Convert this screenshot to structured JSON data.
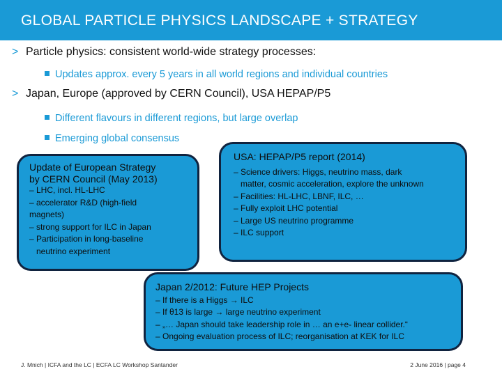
{
  "header": {
    "title": "GLOBAL PARTICLE PHYSICS LANDSCAPE + STRATEGY"
  },
  "bullets": [
    {
      "text": "Particle physics: consistent world-wide strategy processes:",
      "sub": [
        "Updates approx. every 5 years in all world regions and individual countries"
      ]
    },
    {
      "text": "Japan, Europe (approved by CERN Council), USA HEPAP/P5",
      "sub": [
        "Different flavours in different regions, but large overlap",
        "Emerging global consensus"
      ]
    }
  ],
  "boxes": {
    "europe": {
      "title_line1": "Update of European Strategy",
      "title_line2": "by CERN Council (May 2013)",
      "items": [
        "– LHC, incl. HL-LHC",
        "– accelerator R&D (high-field",
        "magnets)",
        "– strong support for ILC in Japan",
        "– Participation in long-baseline",
        "neutrino experiment"
      ]
    },
    "usa": {
      "title": "USA: HEPAP/P5 report (2014)",
      "items": [
        "– Science drivers: Higgs, neutrino mass, dark",
        "matter, cosmic acceleration, explore the unknown",
        "– Facilities: HL-LHC, LBNF, ILC, …",
        "– Fully exploit LHC potential",
        "– Large US neutrino programme",
        "– ILC support"
      ]
    },
    "japan": {
      "title": "Japan 2/2012: Future HEP Projects",
      "items": [
        "– If there is a Higgs → ILC",
        "– If θ13 is large → large neutrino experiment",
        "– „… Japan should take leadership role in … an e+e- linear collider.“",
        "– Ongoing evaluation process of ILC; reorganisation at KEK for ILC"
      ]
    }
  },
  "footer": {
    "left": "J. Mnich | ICFA and the LC | ECFA LC Workshop Santander",
    "right": "2 June 2016 | page 4"
  },
  "colors": {
    "accent": "#1a9ad6",
    "box_border": "#10233f",
    "text": "#111111"
  }
}
